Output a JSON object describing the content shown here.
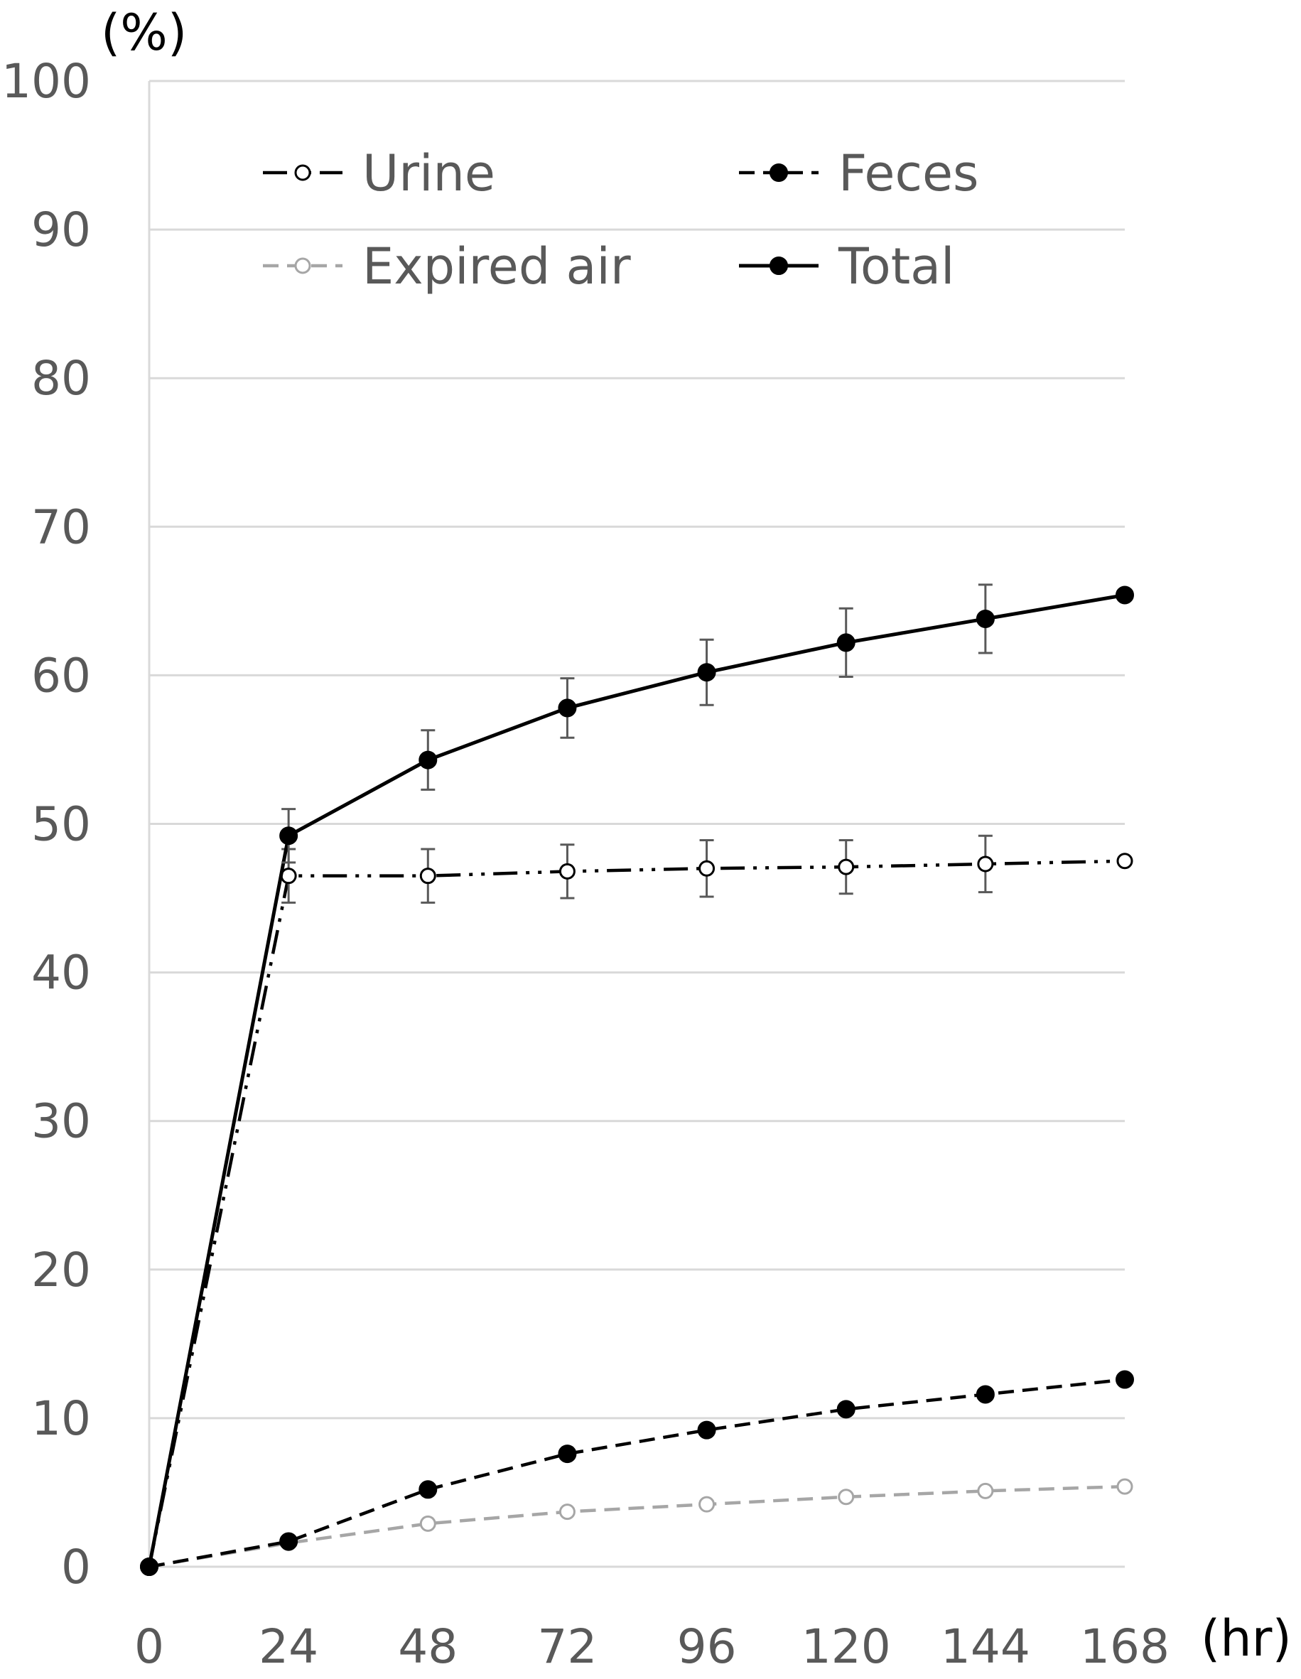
{
  "chart_data": {
    "type": "line",
    "title": "",
    "xlabel": "(hr)",
    "ylabel": "(%)",
    "x": [
      0,
      24,
      48,
      72,
      96,
      120,
      144,
      168
    ],
    "x_ticks": [
      "0",
      "24",
      "48",
      "72",
      "96",
      "120",
      "144",
      "168"
    ],
    "y_ticks": [
      "0",
      "10",
      "20",
      "30",
      "40",
      "50",
      "60",
      "70",
      "80",
      "90",
      "100"
    ],
    "ylim": [
      0,
      100
    ],
    "grid": "horizontal",
    "legend_position": "top, inside plot, two columns",
    "series": [
      {
        "name": "Urine",
        "values": [
          0,
          46.5,
          46.5,
          46.8,
          47.0,
          47.1,
          47.3,
          47.5
        ],
        "errors": [
          0,
          1.8,
          1.8,
          1.8,
          1.9,
          1.8,
          1.9,
          0
        ],
        "line_style": "dash-dot-dot",
        "marker": "open-circle",
        "color": "#000000"
      },
      {
        "name": "Feces",
        "values": [
          0,
          1.7,
          5.2,
          7.6,
          9.2,
          10.6,
          11.6,
          12.6
        ],
        "errors": [
          0,
          0,
          0,
          0,
          0,
          0,
          0,
          0
        ],
        "line_style": "dashed",
        "marker": "filled-circle",
        "color": "#000000"
      },
      {
        "name": "Expired air",
        "values": [
          0,
          1.6,
          2.9,
          3.7,
          4.2,
          4.7,
          5.1,
          5.4
        ],
        "errors": [
          0,
          0,
          0,
          0,
          0,
          0,
          0,
          0
        ],
        "line_style": "dashed",
        "marker": "open-circle",
        "color": "#a6a6a6"
      },
      {
        "name": "Total",
        "values": [
          0,
          49.2,
          54.3,
          57.8,
          60.2,
          62.2,
          63.8,
          65.4
        ],
        "errors": [
          0,
          1.8,
          2.0,
          2.0,
          2.2,
          2.3,
          2.3,
          0
        ],
        "line_style": "solid",
        "marker": "filled-circle",
        "color": "#000000"
      }
    ]
  }
}
